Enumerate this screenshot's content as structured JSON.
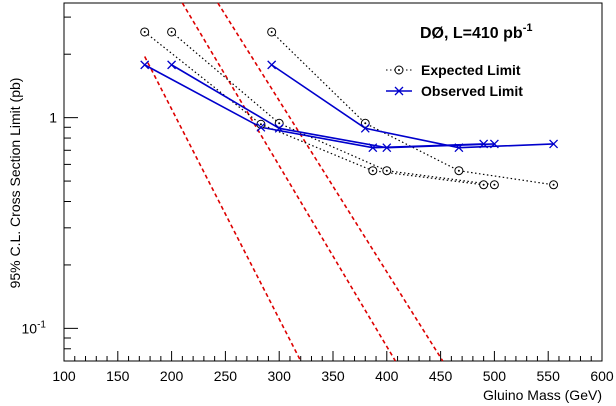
{
  "chart_data": {
    "type": "line",
    "title": "DØ, L=410 pb",
    "title_superscript": "-1",
    "xlabel": "Gluino Mass (GeV)",
    "ylabel": "95% C.L. Cross Section Limit (pb)",
    "xlim": [
      100,
      600
    ],
    "ylim": [
      0.07,
      3.5
    ],
    "y_scale": "log",
    "x_ticks": [
      100,
      150,
      200,
      250,
      300,
      350,
      400,
      450,
      500,
      550,
      600
    ],
    "y_tick_labels": [
      {
        "value": 1,
        "label": "1"
      },
      {
        "value": 0.1,
        "label": "10",
        "sup": "-1"
      }
    ],
    "legend": {
      "position": "top-right",
      "entries": [
        "Expected Limit",
        "Observed Limit"
      ]
    },
    "series": [
      {
        "name": "Expected Limit",
        "style": "dotted",
        "marker": "circle-dot",
        "color": "#000000",
        "x": [
          175,
          283,
          387,
          490
        ],
        "y": [
          2.55,
          0.93,
          0.56,
          0.48
        ]
      },
      {
        "name": "Expected Limit",
        "style": "dotted",
        "marker": "circle-dot",
        "color": "#000000",
        "x": [
          200,
          300,
          400,
          500
        ],
        "y": [
          2.55,
          0.94,
          0.56,
          0.48
        ]
      },
      {
        "name": "Expected Limit",
        "style": "dotted",
        "marker": "circle-dot",
        "color": "#000000",
        "x": [
          293,
          380,
          467,
          555
        ],
        "y": [
          2.55,
          0.94,
          0.56,
          0.48
        ]
      },
      {
        "name": "Observed Limit",
        "style": "solid",
        "marker": "x",
        "color": "#0000cc",
        "x": [
          175,
          283,
          387,
          490
        ],
        "y": [
          1.78,
          0.9,
          0.72,
          0.75
        ]
      },
      {
        "name": "Observed Limit",
        "style": "solid",
        "marker": "x",
        "color": "#0000cc",
        "x": [
          200,
          300,
          400,
          500
        ],
        "y": [
          1.78,
          0.89,
          0.72,
          0.75
        ]
      },
      {
        "name": "Observed Limit",
        "style": "solid",
        "marker": "x",
        "color": "#0000cc",
        "x": [
          293,
          380,
          467,
          555
        ],
        "y": [
          1.78,
          0.89,
          0.72,
          0.75
        ]
      }
    ],
    "theory_curves": [
      {
        "style": "dashed",
        "color": "#dd0000",
        "x": [
          175,
          320
        ],
        "y": [
          1.95,
          0.07
        ]
      },
      {
        "style": "dashed",
        "color": "#dd0000",
        "x": [
          210,
          408
        ],
        "y": [
          3.5,
          0.07
        ]
      },
      {
        "style": "dashed",
        "color": "#dd0000",
        "x": [
          243,
          452
        ],
        "y": [
          3.5,
          0.07
        ]
      }
    ]
  }
}
